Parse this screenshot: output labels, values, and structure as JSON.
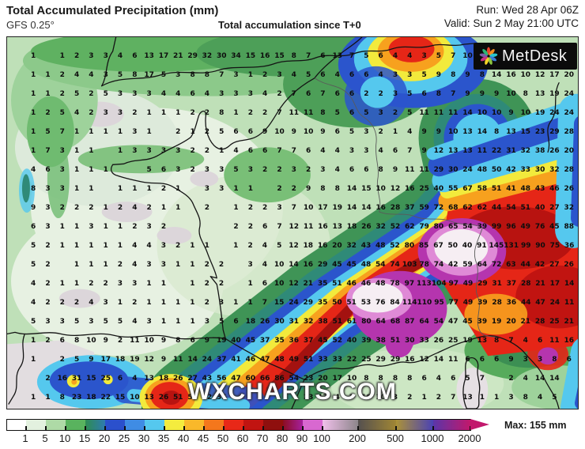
{
  "header": {
    "title": "Total Accumulated Precipitation (mm)",
    "model": "GFS 0.25°",
    "center_label": "Total accumulation since T+0",
    "run_label": "Run: Wed 28 Apr 06Z",
    "valid_label": "Valid: Sun 2 May 21:00 UTC"
  },
  "logo": {
    "text": "MetDesk"
  },
  "watermark": "WXCHARTS.COM",
  "colorbar": {
    "ticks": [
      "1",
      "5",
      "10",
      "15",
      "20",
      "25",
      "30",
      "35",
      "40",
      "45",
      "50",
      "60",
      "70",
      "80",
      "90",
      "100",
      "200",
      "500",
      "1000",
      "2000"
    ],
    "segment_colors": [
      "#ffffff",
      "#e3f1df",
      "#aedaa6",
      "#59b35e",
      "linear-gradient(90deg,#2e8c52,#2e7bb0)",
      "#2b50cc",
      "#3f8ce4",
      "#55c8ee",
      "#f4ec3e",
      "#f9b82a",
      "#f4771c",
      "#e82818",
      "#c11411",
      "#8f0f0e",
      "linear-gradient(90deg,#8c0d22,#a6209e)",
      "#d868d0",
      "linear-gradient(90deg,#f0c0ea,#8d868b)",
      "linear-gradient(90deg,#55504f,#a08634)",
      "linear-gradient(90deg,#ab9238,#4b42b4)",
      "linear-gradient(90deg,#5b35a8,#c2186c)"
    ],
    "arrow_color": "#c2186c",
    "max_label": "Max: 155 mm"
  },
  "grid": {
    "rows": [
      [
        "1",
        "",
        "1",
        "2",
        "3",
        "3",
        "4",
        "6",
        "13",
        "17",
        "21",
        "29",
        "32",
        "30",
        "34",
        "15",
        "16",
        "15",
        "8",
        "7",
        "6",
        "13",
        "7",
        "5",
        "6",
        "4",
        "4",
        "3",
        "5",
        "7",
        "10",
        "12",
        "9",
        "",
        "",
        "",
        "",
        ""
      ],
      [
        "1",
        "1",
        "2",
        "4",
        "4",
        "3",
        "5",
        "8",
        "17",
        "5",
        "3",
        "8",
        "8",
        "7",
        "3",
        "1",
        "2",
        "3",
        "4",
        "5",
        "6",
        "4",
        "6",
        "6",
        "4",
        "3",
        "3",
        "5",
        "9",
        "8",
        "9",
        "8",
        "14",
        "16",
        "10",
        "12",
        "17",
        "20"
      ],
      [
        "1",
        "1",
        "2",
        "5",
        "2",
        "5",
        "3",
        "3",
        "3",
        "4",
        "4",
        "6",
        "4",
        "3",
        "3",
        "3",
        "4",
        "2",
        "7",
        "6",
        "7",
        "6",
        "6",
        "2",
        "2",
        "3",
        "5",
        "6",
        "8",
        "7",
        "9",
        "9",
        "9",
        "10",
        "8",
        "13",
        "19",
        "24"
      ],
      [
        "1",
        "2",
        "5",
        "4",
        "2",
        "3",
        "3",
        "2",
        "1",
        "1",
        "1",
        "2",
        "2",
        "8",
        "1",
        "2",
        "2",
        "7",
        "11",
        "11",
        "8",
        "5",
        "6",
        "5",
        "3",
        "2",
        "5",
        "11",
        "11",
        "11",
        "14",
        "10",
        "10",
        "9",
        "10",
        "19",
        "24",
        "24"
      ],
      [
        "1",
        "5",
        "7",
        "1",
        "1",
        "1",
        "1",
        "3",
        "1",
        "",
        "2",
        "1",
        "2",
        "5",
        "6",
        "6",
        "9",
        "10",
        "9",
        "10",
        "9",
        "6",
        "5",
        "3",
        "2",
        "1",
        "4",
        "9",
        "9",
        "10",
        "13",
        "14",
        "8",
        "13",
        "15",
        "23",
        "29",
        "28"
      ],
      [
        "1",
        "7",
        "3",
        "1",
        "1",
        "",
        "1",
        "3",
        "3",
        "3",
        "3",
        "2",
        "2",
        "1",
        "4",
        "6",
        "6",
        "7",
        "7",
        "6",
        "4",
        "4",
        "3",
        "3",
        "4",
        "6",
        "7",
        "9",
        "12",
        "13",
        "13",
        "11",
        "22",
        "31",
        "32",
        "38",
        "26",
        "20"
      ],
      [
        "4",
        "6",
        "3",
        "1",
        "1",
        "1",
        "",
        "",
        "5",
        "6",
        "3",
        "2",
        "3",
        "3",
        "5",
        "3",
        "2",
        "2",
        "3",
        "2",
        "3",
        "4",
        "6",
        "6",
        "8",
        "9",
        "11",
        "11",
        "29",
        "30",
        "24",
        "48",
        "50",
        "42",
        "33",
        "30",
        "32",
        "28"
      ],
      [
        "8",
        "3",
        "3",
        "1",
        "1",
        "",
        "1",
        "1",
        "1",
        "2",
        "1",
        "",
        "3",
        "3",
        "1",
        "1",
        "",
        "2",
        "2",
        "9",
        "8",
        "8",
        "14",
        "15",
        "10",
        "12",
        "16",
        "25",
        "40",
        "55",
        "67",
        "58",
        "51",
        "41",
        "48",
        "43",
        "46",
        "26"
      ],
      [
        "9",
        "3",
        "2",
        "2",
        "2",
        "1",
        "2",
        "4",
        "2",
        "1",
        "1",
        "",
        "2",
        "",
        "1",
        "2",
        "2",
        "3",
        "7",
        "10",
        "17",
        "19",
        "14",
        "14",
        "16",
        "28",
        "37",
        "59",
        "72",
        "68",
        "62",
        "62",
        "44",
        "54",
        "51",
        "40",
        "27",
        "32"
      ],
      [
        "6",
        "3",
        "1",
        "1",
        "3",
        "1",
        "1",
        "2",
        "3",
        "2",
        "",
        "",
        "",
        "",
        "2",
        "2",
        "6",
        "7",
        "12",
        "11",
        "16",
        "13",
        "18",
        "26",
        "32",
        "52",
        "62",
        "79",
        "80",
        "65",
        "54",
        "39",
        "99",
        "96",
        "49",
        "76",
        "45",
        "88"
      ],
      [
        "5",
        "2",
        "1",
        "1",
        "1",
        "1",
        "1",
        "4",
        "4",
        "3",
        "2",
        "1",
        "1",
        "",
        "1",
        "2",
        "4",
        "5",
        "12",
        "18",
        "16",
        "20",
        "32",
        "43",
        "48",
        "52",
        "80",
        "85",
        "67",
        "50",
        "40",
        "91",
        "145",
        "131",
        "99",
        "90",
        "75",
        "36"
      ],
      [
        "5",
        "2",
        "",
        "1",
        "1",
        "1",
        "2",
        "4",
        "3",
        "3",
        "1",
        "1",
        "2",
        "2",
        "",
        "3",
        "4",
        "10",
        "14",
        "16",
        "29",
        "45",
        "45",
        "48",
        "54",
        "74",
        "103",
        "78",
        "74",
        "42",
        "59",
        "64",
        "72",
        "63",
        "44",
        "42",
        "27",
        "26"
      ],
      [
        "4",
        "2",
        "1",
        "1",
        "2",
        "2",
        "3",
        "3",
        "1",
        "1",
        "",
        "1",
        "2",
        "2",
        "",
        "1",
        "6",
        "10",
        "12",
        "21",
        "35",
        "51",
        "46",
        "46",
        "48",
        "78",
        "97",
        "113",
        "104",
        "97",
        "49",
        "29",
        "31",
        "37",
        "28",
        "21",
        "17",
        "14"
      ],
      [
        "4",
        "2",
        "2",
        "2",
        "4",
        "3",
        "1",
        "2",
        "1",
        "1",
        "1",
        "1",
        "2",
        "3",
        "1",
        "1",
        "7",
        "15",
        "24",
        "29",
        "35",
        "50",
        "51",
        "53",
        "76",
        "84",
        "114",
        "110",
        "95",
        "77",
        "49",
        "39",
        "28",
        "36",
        "44",
        "47",
        "24",
        "11"
      ],
      [
        "5",
        "3",
        "3",
        "5",
        "3",
        "5",
        "5",
        "4",
        "3",
        "1",
        "1",
        "1",
        "3",
        "5",
        "6",
        "18",
        "26",
        "30",
        "31",
        "32",
        "38",
        "51",
        "61",
        "80",
        "64",
        "68",
        "87",
        "64",
        "54",
        "47",
        "45",
        "39",
        "19",
        "20",
        "21",
        "28",
        "25",
        "21"
      ],
      [
        "1",
        "2",
        "6",
        "8",
        "10",
        "9",
        "2",
        "11",
        "10",
        "9",
        "8",
        "6",
        "9",
        "19",
        "40",
        "45",
        "37",
        "35",
        "36",
        "37",
        "45",
        "52",
        "40",
        "39",
        "38",
        "51",
        "30",
        "33",
        "26",
        "25",
        "19",
        "13",
        "8",
        "7",
        "4",
        "6",
        "11",
        "16"
      ],
      [
        "1",
        "",
        "2",
        "5",
        "9",
        "17",
        "18",
        "19",
        "12",
        "9",
        "11",
        "14",
        "24",
        "37",
        "41",
        "46",
        "47",
        "48",
        "49",
        "51",
        "33",
        "33",
        "22",
        "25",
        "29",
        "29",
        "16",
        "12",
        "14",
        "11",
        "6",
        "6",
        "6",
        "9",
        "3",
        "3",
        "8",
        "6"
      ],
      [
        "",
        "2",
        "16",
        "31",
        "15",
        "25",
        "6",
        "4",
        "13",
        "18",
        "26",
        "27",
        "43",
        "56",
        "47",
        "60",
        "66",
        "86",
        "54",
        "23",
        "20",
        "17",
        "10",
        "8",
        "8",
        "8",
        "8",
        "6",
        "4",
        "6",
        "5",
        "7",
        "",
        "2",
        "4",
        "14",
        "14",
        ""
      ],
      [
        "1",
        "1",
        "8",
        "23",
        "18",
        "22",
        "15",
        "10",
        "13",
        "26",
        "51",
        "58",
        "42",
        "35",
        "",
        "",
        "",
        "",
        "",
        "23",
        "13",
        "4",
        "7",
        "10",
        "10",
        "3",
        "2",
        "1",
        "2",
        "7",
        "13",
        "1",
        "1",
        "3",
        "8",
        "4",
        "5",
        ""
      ]
    ]
  }
}
